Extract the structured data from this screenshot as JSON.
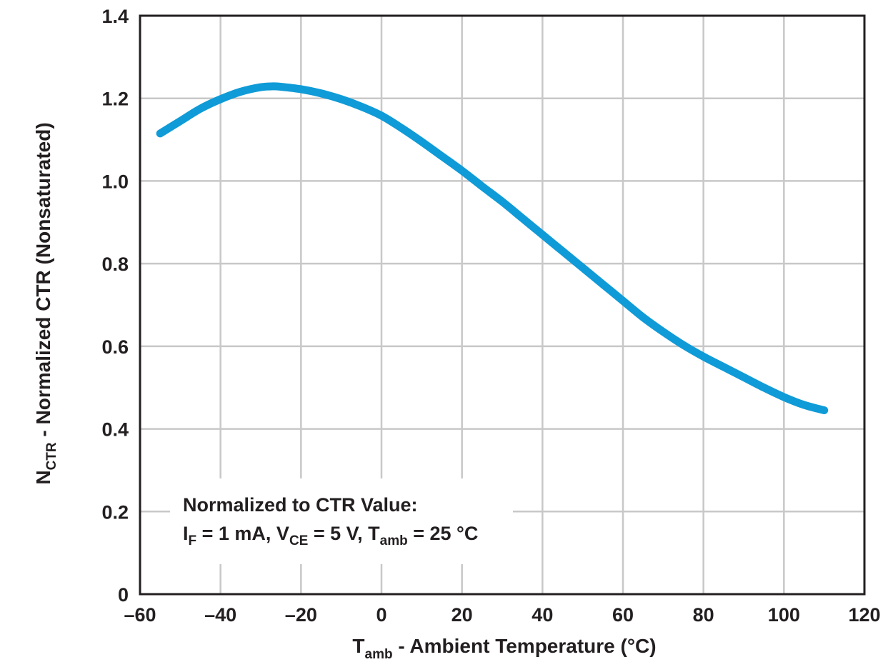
{
  "chart_data": {
    "type": "line",
    "title": "",
    "xlabel": {
      "main": "T",
      "sub": "amb",
      "rest": " - Ambient Temperature (°C)"
    },
    "ylabel": {
      "main": "N",
      "sub": "CTR",
      "rest": " - Normalized CTR (Nonsaturated)"
    },
    "xlim": [
      -60,
      120
    ],
    "ylim": [
      0,
      1.4
    ],
    "xticks": [
      -60,
      -40,
      -20,
      0,
      20,
      40,
      60,
      80,
      100,
      120
    ],
    "xtick_labels": [
      "–60",
      "–40",
      "–20",
      "0",
      "20",
      "40",
      "60",
      "80",
      "100",
      "120"
    ],
    "yticks": [
      0,
      0.2,
      0.4,
      0.6,
      0.8,
      1.0,
      1.2,
      1.4
    ],
    "ytick_labels": [
      "0",
      "0.2",
      "0.4",
      "0.6",
      "0.8",
      "1.0",
      "1.2",
      "1.4"
    ],
    "grid": true,
    "series": [
      {
        "name": "NCTR",
        "color": "#0f9bd7",
        "x": [
          -55,
          -50,
          -45,
          -40,
          -35,
          -30,
          -27,
          -25,
          -20,
          -15,
          -10,
          -5,
          0,
          5,
          10,
          15,
          20,
          25,
          30,
          35,
          40,
          45,
          50,
          55,
          60,
          65,
          70,
          75,
          80,
          85,
          90,
          95,
          100,
          105,
          110
        ],
        "y": [
          1.115,
          1.145,
          1.175,
          1.198,
          1.216,
          1.227,
          1.229,
          1.228,
          1.222,
          1.212,
          1.198,
          1.18,
          1.158,
          1.128,
          1.095,
          1.06,
          1.025,
          0.987,
          0.95,
          0.91,
          0.87,
          0.83,
          0.79,
          0.75,
          0.71,
          0.67,
          0.635,
          0.603,
          0.575,
          0.55,
          0.525,
          0.5,
          0.477,
          0.458,
          0.445
        ]
      }
    ],
    "annotation": {
      "line1": "Normalized to CTR Value:",
      "line2": [
        {
          "t": "I",
          "s": "F"
        },
        {
          "t": " = 1 mA, V",
          "s": "CE"
        },
        {
          "t": " = 5 V, T",
          "s": "amb"
        },
        {
          "t": " = 25 °C",
          "s": ""
        }
      ],
      "position": "bottom-left"
    }
  }
}
